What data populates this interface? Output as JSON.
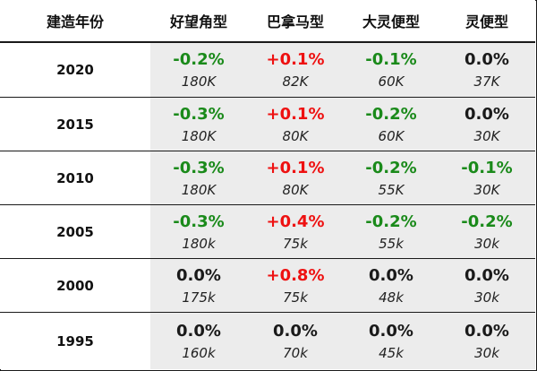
{
  "table": {
    "headers": [
      "建造年份",
      "好望角型",
      "巴拿马型",
      "大灵便型",
      "灵便型"
    ],
    "rows": [
      {
        "year": "2020",
        "cells": [
          {
            "pct": "-0.2%",
            "count": "180K",
            "sign": "neg"
          },
          {
            "pct": "+0.1%",
            "count": "82K",
            "sign": "pos"
          },
          {
            "pct": "-0.1%",
            "count": "60K",
            "sign": "neg"
          },
          {
            "pct": "0.0%",
            "count": "37K",
            "sign": "zero"
          }
        ]
      },
      {
        "year": "2015",
        "cells": [
          {
            "pct": "-0.3%",
            "count": "180K",
            "sign": "neg"
          },
          {
            "pct": "+0.1%",
            "count": "80K",
            "sign": "pos"
          },
          {
            "pct": "-0.2%",
            "count": "60K",
            "sign": "neg"
          },
          {
            "pct": "0.0%",
            "count": "30K",
            "sign": "zero"
          }
        ]
      },
      {
        "year": "2010",
        "cells": [
          {
            "pct": "-0.3%",
            "count": "180K",
            "sign": "neg"
          },
          {
            "pct": "+0.1%",
            "count": "80K",
            "sign": "pos"
          },
          {
            "pct": "-0.2%",
            "count": "55K",
            "sign": "neg"
          },
          {
            "pct": "-0.1%",
            "count": "30K",
            "sign": "neg"
          }
        ]
      },
      {
        "year": "2005",
        "cells": [
          {
            "pct": "-0.3%",
            "count": "180k",
            "sign": "neg"
          },
          {
            "pct": "+0.4%",
            "count": "75k",
            "sign": "pos"
          },
          {
            "pct": "-0.2%",
            "count": "55k",
            "sign": "neg"
          },
          {
            "pct": "-0.2%",
            "count": "30k",
            "sign": "neg"
          }
        ]
      },
      {
        "year": "2000",
        "cells": [
          {
            "pct": "0.0%",
            "count": "175k",
            "sign": "zero"
          },
          {
            "pct": "+0.8%",
            "count": "75k",
            "sign": "pos"
          },
          {
            "pct": "0.0%",
            "count": "48k",
            "sign": "zero"
          },
          {
            "pct": "0.0%",
            "count": "30k",
            "sign": "zero"
          }
        ]
      },
      {
        "year": "1995",
        "cells": [
          {
            "pct": "0.0%",
            "count": "160k",
            "sign": "zero"
          },
          {
            "pct": "0.0%",
            "count": "70k",
            "sign": "zero"
          },
          {
            "pct": "0.0%",
            "count": "45k",
            "sign": "zero"
          },
          {
            "pct": "0.0%",
            "count": "30k",
            "sign": "zero"
          }
        ]
      }
    ]
  },
  "colors": {
    "negative": "#1a8a1a",
    "positive": "#ee1111",
    "zero": "#1a1a1a",
    "cell_background": "#ececec"
  }
}
